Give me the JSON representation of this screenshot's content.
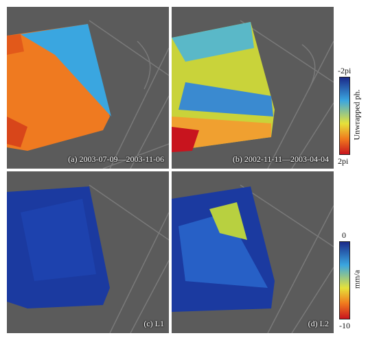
{
  "panels": [
    {
      "id": "a",
      "caption": "(a) 2003-07-09—2003-11-06"
    },
    {
      "id": "b",
      "caption": "(b) 2002-11-11—2003-04-04"
    },
    {
      "id": "c",
      "caption": "(c) L1"
    },
    {
      "id": "d",
      "caption": "(d) L2"
    }
  ],
  "colorbar_top": {
    "max_label": "-2pi",
    "min_label": "2pi",
    "title": "Unwrapped ph."
  },
  "colorbar_bottom": {
    "max_label": "0",
    "min_label": "-10",
    "title": "mm/a"
  },
  "colors": {
    "dark_blue": "#1b2a8a",
    "light_blue": "#3aa6e0",
    "yellow": "#e6e23a",
    "orange": "#f07a1e",
    "red": "#c8141e"
  }
}
